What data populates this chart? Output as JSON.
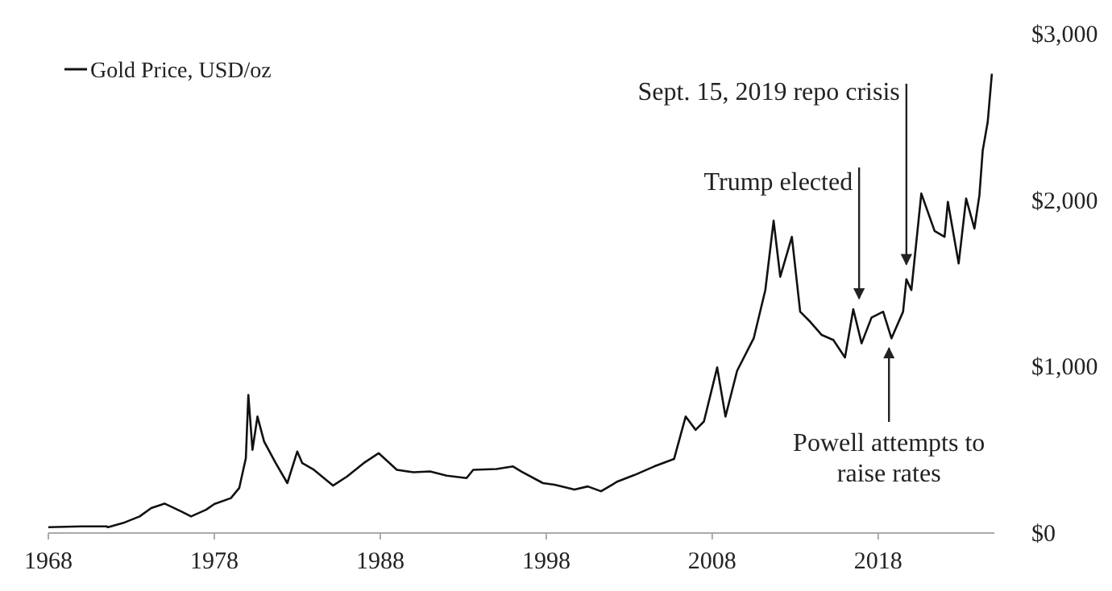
{
  "chart_data": {
    "type": "line",
    "legend": "top left",
    "line_style": "solid",
    "xlim": [
      1968,
      2025
    ],
    "xticks": [
      1968,
      1978,
      1988,
      1998,
      2008,
      2018
    ],
    "ylim": [
      0,
      3000
    ],
    "yticks": [
      {
        "value": 0,
        "label": "$0"
      },
      {
        "value": 1000,
        "label": "$1,000"
      },
      {
        "value": 2000,
        "label": "$2,000"
      },
      {
        "value": 3000,
        "label": "$3,000"
      }
    ],
    "series": [
      {
        "name": "Gold Price, USD/oz",
        "color": "#111111",
        "x": [
          1968,
          1970,
          1971.5,
          1971.6,
          1972.5,
          1973.5,
          1974.2,
          1975,
          1976,
          1976.6,
          1977.5,
          1978,
          1979,
          1979.5,
          1979.9,
          1980.05,
          1980.3,
          1980.6,
          1981,
          1981.7,
          1982.4,
          1983,
          1983.3,
          1984,
          1985.15,
          1986,
          1987,
          1987.9,
          1989,
          1990,
          1991,
          1992,
          1993.2,
          1993.6,
          1995,
          1996,
          1996.5,
          1997.8,
          1998.5,
          1999.7,
          2000.5,
          2001.3,
          2002.3,
          2003.3,
          2004.5,
          2005.7,
          2006.4,
          2007,
          2007.5,
          2008.3,
          2008.8,
          2009.5,
          2010.5,
          2011.2,
          2011.7,
          2012.1,
          2012.8,
          2013.3,
          2013.9,
          2014.6,
          2015.3,
          2016,
          2016.5,
          2017,
          2017.6,
          2018.3,
          2018.8,
          2019.5,
          2019.7,
          2020,
          2020.6,
          2021.4,
          2022,
          2022.2,
          2022.85,
          2023.3,
          2023.8,
          2024.1,
          2024.3,
          2024.6,
          2024.85
        ],
        "values": [
          35,
          40,
          40,
          35,
          60,
          100,
          150,
          177,
          130,
          100,
          140,
          174,
          210,
          270,
          450,
          830,
          500,
          700,
          550,
          420,
          300,
          490,
          420,
          380,
          285,
          340,
          420,
          480,
          380,
          365,
          370,
          345,
          330,
          380,
          385,
          400,
          370,
          300,
          290,
          261,
          280,
          251,
          310,
          348,
          400,
          445,
          700,
          620,
          670,
          995,
          700,
          975,
          1170,
          1460,
          1877,
          1540,
          1780,
          1330,
          1270,
          1190,
          1160,
          1055,
          1345,
          1140,
          1295,
          1330,
          1170,
          1330,
          1525,
          1460,
          2040,
          1815,
          1780,
          1990,
          1620,
          2010,
          1830,
          2030,
          2300,
          2470,
          2760
        ]
      }
    ],
    "annotations": [
      {
        "text": "Sept. 15, 2019 repo crisis",
        "x": 2019.7,
        "y": 1585
      },
      {
        "text": "Trump elected",
        "x": 2016.85,
        "y": 1380
      },
      {
        "text": "Powell attempts to raise rates",
        "x": 2018.65,
        "y": 1140
      }
    ]
  }
}
